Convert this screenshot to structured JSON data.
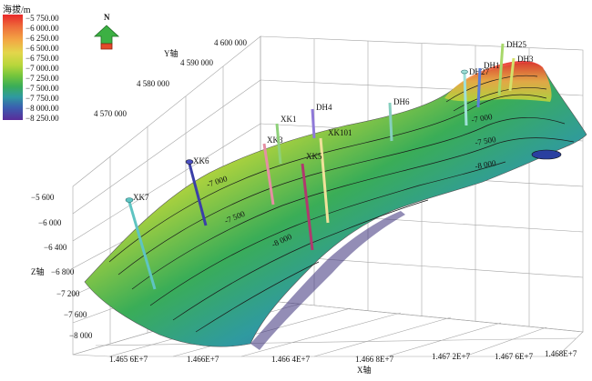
{
  "legend": {
    "title": "海拔/m",
    "labels": [
      "−5 750.00",
      "−6 000.00",
      "−6 250.00",
      "−6 500.00",
      "−6 750.00",
      "−7 000.00",
      "−7 250.00",
      "−7 500.00",
      "−7 750.00",
      "−8 000.00",
      "−8 250.00"
    ]
  },
  "compass": {
    "label": "N"
  },
  "axes": {
    "y_title": "Y轴",
    "y_ticks": [
      "4 600 000",
      "4 590 000",
      "4 580 000",
      "4 570 000"
    ],
    "z_title": "Z轴",
    "z_ticks": [
      "−5 600",
      "−6 000",
      "−6 400",
      "−6 800",
      "−7 200",
      "−7 600",
      "−8 000"
    ],
    "x_title": "X轴",
    "x_ticks": [
      "1.465 6E+7",
      "1.466E+7",
      "1.466 4E+7",
      "1.466 8E+7",
      "1.467 2E+7",
      "1.467 6E+7",
      "1.468E+7"
    ]
  },
  "contours": [
    "-7 000",
    "-7 500",
    "-8 000",
    "-7 000",
    "-7 500",
    "-8 000",
    "-7 000",
    "-7 500",
    "-8 000"
  ],
  "wells": [
    "XK7",
    "XK6",
    "XK3",
    "XK1",
    "DH4",
    "XK101",
    "XK5",
    "DH6",
    "DH27",
    "DH1",
    "DH25",
    "DH3"
  ],
  "colors": {
    "low": "#5a2c9a",
    "mid": "#74c53c",
    "high": "#e8282a",
    "grid": "#9a9a9a"
  }
}
